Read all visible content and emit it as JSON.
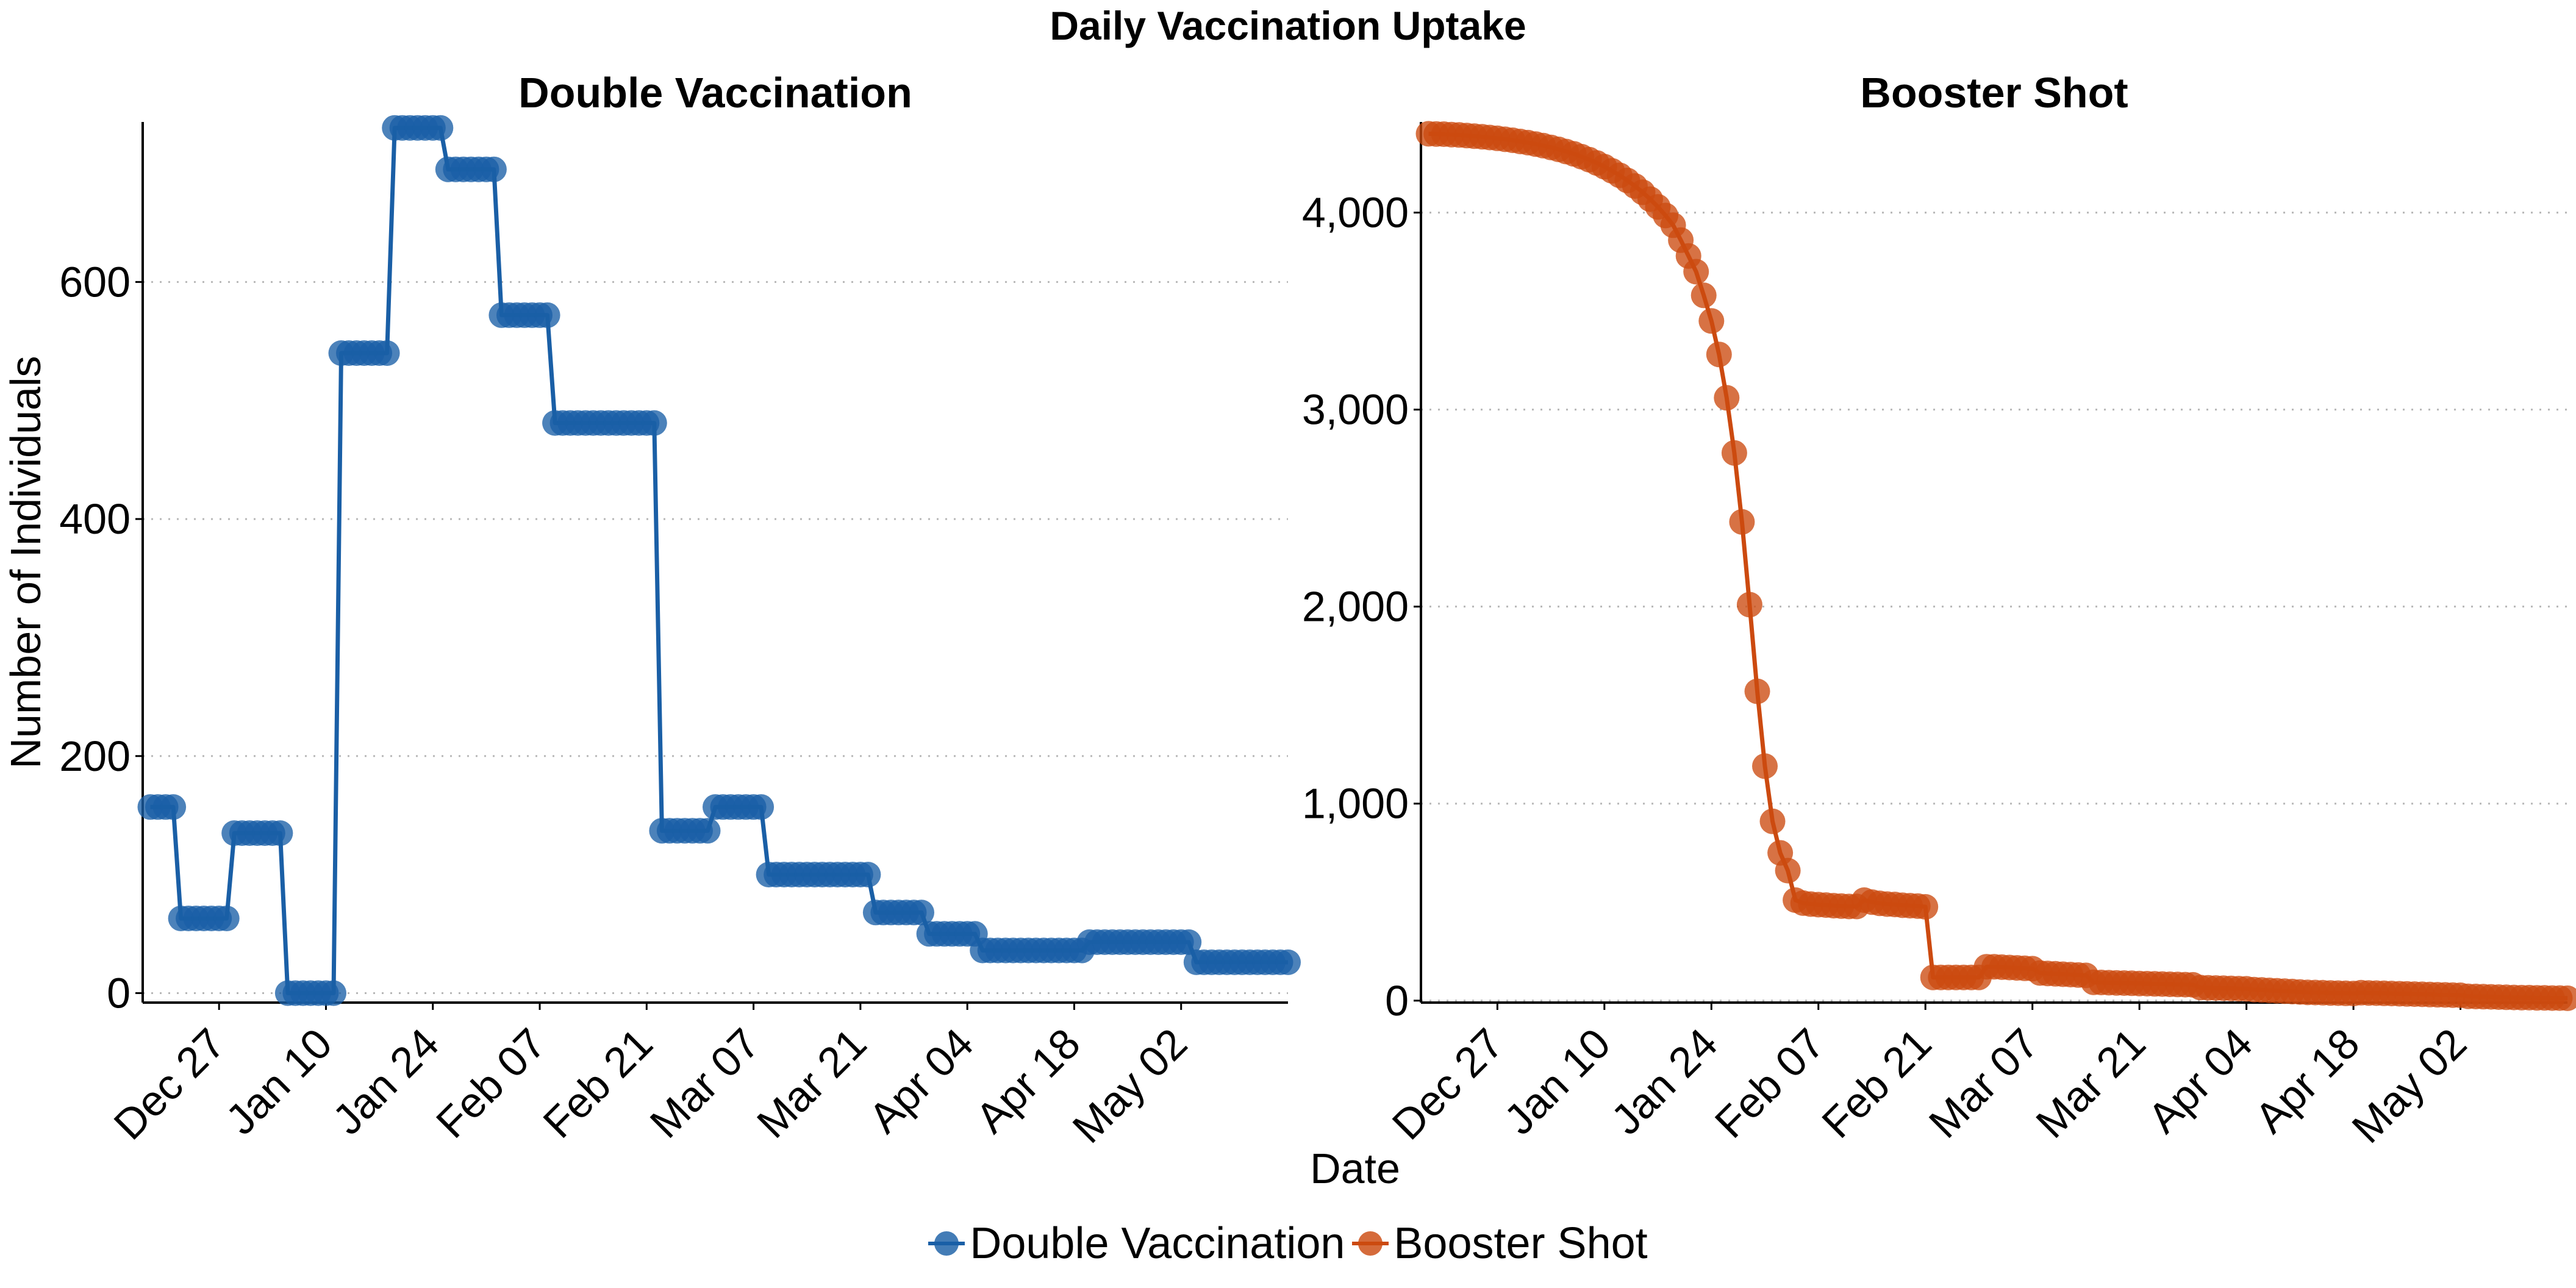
{
  "title": "Daily Vaccination Uptake",
  "xlabel": "Date",
  "legend": [
    {
      "name": "Double Vaccination",
      "color": "#1a5fa6"
    },
    {
      "name": "Booster Shot",
      "color": "#cc4a10"
    }
  ],
  "chart_data": [
    {
      "type": "line",
      "title": "Double Vaccination",
      "xlabel": "Date",
      "ylabel": "Number of Individuals",
      "color": "#1a5fa6",
      "ylim": [
        -8,
        735
      ],
      "yticks": [
        0,
        200,
        400,
        600
      ],
      "ytick_labels": [
        "0",
        "200",
        "400",
        "600"
      ],
      "xlim": [
        "2022-12-17",
        "2023-05-16"
      ],
      "xticks": [
        "2022-12-27",
        "2023-01-10",
        "2023-01-24",
        "2023-02-07",
        "2023-02-21",
        "2023-03-07",
        "2023-03-21",
        "2023-04-04",
        "2023-04-18",
        "2023-05-02"
      ],
      "xtick_labels": [
        "Dec 27",
        "Jan 10",
        "Jan 24",
        "Feb 07",
        "Feb 21",
        "Mar 07",
        "Mar 21",
        "Apr 04",
        "Apr 18",
        "May 02"
      ],
      "grid": "horizontal dotted",
      "steps": [
        {
          "from": "2022-12-18",
          "to": "2022-12-21",
          "value": 157
        },
        {
          "from": "2022-12-22",
          "to": "2022-12-28",
          "value": 63
        },
        {
          "from": "2022-12-29",
          "to": "2023-01-04",
          "value": 135
        },
        {
          "from": "2023-01-05",
          "to": "2023-01-11",
          "value": 0
        },
        {
          "from": "2023-01-12",
          "to": "2023-01-18",
          "value": 540
        },
        {
          "from": "2023-01-19",
          "to": "2023-01-25",
          "value": 730
        },
        {
          "from": "2023-01-26",
          "to": "2023-02-01",
          "value": 695
        },
        {
          "from": "2023-02-02",
          "to": "2023-02-08",
          "value": 572
        },
        {
          "from": "2023-02-09",
          "to": "2023-02-22",
          "value": 481
        },
        {
          "from": "2023-02-23",
          "to": "2023-03-01",
          "value": 137
        },
        {
          "from": "2023-03-02",
          "to": "2023-03-08",
          "value": 157
        },
        {
          "from": "2023-03-09",
          "to": "2023-03-22",
          "value": 100
        },
        {
          "from": "2023-03-23",
          "to": "2023-03-29",
          "value": 68
        },
        {
          "from": "2023-03-30",
          "to": "2023-04-05",
          "value": 50
        },
        {
          "from": "2023-04-06",
          "to": "2023-04-19",
          "value": 36
        },
        {
          "from": "2023-04-20",
          "to": "2023-05-03",
          "value": 43
        },
        {
          "from": "2023-05-04",
          "to": "2023-05-16",
          "value": 26
        }
      ]
    },
    {
      "type": "line",
      "title": "Booster Shot",
      "color": "#cc4a10",
      "ylim": [
        -10,
        4460
      ],
      "yticks": [
        0,
        1000,
        2000,
        3000,
        4000
      ],
      "ytick_labels": [
        "0",
        "1,000",
        "2,000",
        "3,000",
        "4,000"
      ],
      "xlim": [
        "2022-12-17",
        "2023-05-16"
      ],
      "xticks": [
        "2022-12-27",
        "2023-01-10",
        "2023-01-24",
        "2023-02-07",
        "2023-02-21",
        "2023-03-07",
        "2023-03-21",
        "2023-04-04",
        "2023-04-18",
        "2023-05-02"
      ],
      "xtick_labels": [
        "Dec 27",
        "Jan 10",
        "Jan 24",
        "Feb 07",
        "Feb 21",
        "Mar 07",
        "Mar 21",
        "Apr 04",
        "Apr 18",
        "May 02"
      ],
      "grid": "horizontal dotted",
      "points": [
        [
          "2022-12-18",
          4400
        ],
        [
          "2022-12-19",
          4399
        ],
        [
          "2022-12-20",
          4398
        ],
        [
          "2022-12-21",
          4396
        ],
        [
          "2022-12-22",
          4394
        ],
        [
          "2022-12-23",
          4391
        ],
        [
          "2022-12-24",
          4388
        ],
        [
          "2022-12-25",
          4385
        ],
        [
          "2022-12-26",
          4381
        ],
        [
          "2022-12-27",
          4377
        ],
        [
          "2022-12-28",
          4372
        ],
        [
          "2022-12-29",
          4367
        ],
        [
          "2022-12-30",
          4361
        ],
        [
          "2022-12-31",
          4355
        ],
        [
          "2023-01-01",
          4348
        ],
        [
          "2023-01-02",
          4340
        ],
        [
          "2023-01-03",
          4331
        ],
        [
          "2023-01-04",
          4321
        ],
        [
          "2023-01-05",
          4310
        ],
        [
          "2023-01-06",
          4298
        ],
        [
          "2023-01-07",
          4284
        ],
        [
          "2023-01-08",
          4269
        ],
        [
          "2023-01-09",
          4252
        ],
        [
          "2023-01-10",
          4233
        ],
        [
          "2023-01-11",
          4212
        ],
        [
          "2023-01-12",
          4189
        ],
        [
          "2023-01-13",
          4163
        ],
        [
          "2023-01-14",
          4135
        ],
        [
          "2023-01-15",
          4103
        ],
        [
          "2023-01-16",
          4068
        ],
        [
          "2023-01-17",
          4029
        ],
        [
          "2023-01-18",
          3985
        ],
        [
          "2023-01-19",
          3936
        ],
        [
          "2023-01-20",
          3860
        ],
        [
          "2023-01-21",
          3780
        ],
        [
          "2023-01-22",
          3700
        ],
        [
          "2023-01-23",
          3580
        ],
        [
          "2023-01-24",
          3450
        ],
        [
          "2023-01-25",
          3280
        ],
        [
          "2023-01-26",
          3060
        ],
        [
          "2023-01-27",
          2780
        ],
        [
          "2023-01-28",
          2430
        ],
        [
          "2023-01-29",
          2010
        ],
        [
          "2023-01-30",
          1570
        ],
        [
          "2023-01-31",
          1190
        ],
        [
          "2023-02-01",
          910
        ],
        [
          "2023-02-02",
          750
        ],
        [
          "2023-02-03",
          660
        ],
        [
          "2023-02-04",
          510
        ],
        [
          "2023-02-05",
          495
        ],
        [
          "2023-02-06",
          490
        ],
        [
          "2023-02-07",
          487
        ],
        [
          "2023-02-08",
          485
        ],
        [
          "2023-02-09",
          482
        ],
        [
          "2023-02-10",
          480
        ],
        [
          "2023-02-11",
          478
        ],
        [
          "2023-02-12",
          478
        ],
        [
          "2023-02-13",
          510
        ],
        [
          "2023-02-14",
          500
        ],
        [
          "2023-02-15",
          494
        ],
        [
          "2023-02-16",
          490
        ],
        [
          "2023-02-17",
          488
        ],
        [
          "2023-02-18",
          484
        ],
        [
          "2023-02-19",
          482
        ],
        [
          "2023-02-20",
          480
        ],
        [
          "2023-02-21",
          476
        ],
        [
          "2023-02-22",
          118
        ],
        [
          "2023-02-23",
          118
        ],
        [
          "2023-02-24",
          118
        ],
        [
          "2023-02-25",
          118
        ],
        [
          "2023-02-26",
          118
        ],
        [
          "2023-02-27",
          118
        ],
        [
          "2023-02-28",
          118
        ],
        [
          "2023-03-01",
          172
        ],
        [
          "2023-03-02",
          172
        ],
        [
          "2023-03-03",
          170
        ],
        [
          "2023-03-04",
          168
        ],
        [
          "2023-03-05",
          166
        ],
        [
          "2023-03-06",
          164
        ],
        [
          "2023-03-07",
          162
        ],
        [
          "2023-03-08",
          140
        ],
        [
          "2023-03-09",
          138
        ],
        [
          "2023-03-10",
          136
        ],
        [
          "2023-03-11",
          134
        ],
        [
          "2023-03-12",
          132
        ],
        [
          "2023-03-13",
          130
        ],
        [
          "2023-03-14",
          128
        ],
        [
          "2023-03-15",
          93
        ],
        [
          "2023-03-16",
          92
        ],
        [
          "2023-03-17",
          91
        ],
        [
          "2023-03-18",
          90
        ],
        [
          "2023-03-19",
          89
        ],
        [
          "2023-03-20",
          88
        ],
        [
          "2023-03-21",
          87
        ],
        [
          "2023-03-22",
          86
        ],
        [
          "2023-03-23",
          85
        ],
        [
          "2023-03-24",
          84
        ],
        [
          "2023-03-25",
          83
        ],
        [
          "2023-03-26",
          82
        ],
        [
          "2023-03-27",
          81
        ],
        [
          "2023-03-28",
          80
        ],
        [
          "2023-03-29",
          66
        ],
        [
          "2023-03-30",
          65
        ],
        [
          "2023-03-31",
          64
        ],
        [
          "2023-04-01",
          63
        ],
        [
          "2023-04-02",
          62
        ],
        [
          "2023-04-03",
          61
        ],
        [
          "2023-04-04",
          60
        ],
        [
          "2023-04-05",
          56
        ],
        [
          "2023-04-06",
          54
        ],
        [
          "2023-04-07",
          52
        ],
        [
          "2023-04-08",
          50
        ],
        [
          "2023-04-09",
          48
        ],
        [
          "2023-04-10",
          46
        ],
        [
          "2023-04-11",
          44
        ],
        [
          "2023-04-12",
          42
        ],
        [
          "2023-04-13",
          41
        ],
        [
          "2023-04-14",
          40
        ],
        [
          "2023-04-15",
          39
        ],
        [
          "2023-04-16",
          38
        ],
        [
          "2023-04-17",
          37
        ],
        [
          "2023-04-18",
          36
        ],
        [
          "2023-04-19",
          40
        ],
        [
          "2023-04-20",
          39
        ],
        [
          "2023-04-21",
          38
        ],
        [
          "2023-04-22",
          37
        ],
        [
          "2023-04-23",
          36
        ],
        [
          "2023-04-24",
          35
        ],
        [
          "2023-04-25",
          34
        ],
        [
          "2023-04-26",
          33
        ],
        [
          "2023-04-27",
          32
        ],
        [
          "2023-04-28",
          31
        ],
        [
          "2023-04-29",
          30
        ],
        [
          "2023-04-30",
          29
        ],
        [
          "2023-05-01",
          28
        ],
        [
          "2023-05-02",
          27
        ],
        [
          "2023-05-03",
          22
        ],
        [
          "2023-05-04",
          21
        ],
        [
          "2023-05-05",
          20
        ],
        [
          "2023-05-06",
          19
        ],
        [
          "2023-05-07",
          18
        ],
        [
          "2023-05-08",
          17
        ],
        [
          "2023-05-09",
          16
        ],
        [
          "2023-05-10",
          15
        ],
        [
          "2023-05-11",
          15
        ],
        [
          "2023-05-12",
          14
        ],
        [
          "2023-05-13",
          14
        ],
        [
          "2023-05-14",
          13
        ],
        [
          "2023-05-15",
          13
        ],
        [
          "2023-05-16",
          12
        ]
      ]
    }
  ]
}
